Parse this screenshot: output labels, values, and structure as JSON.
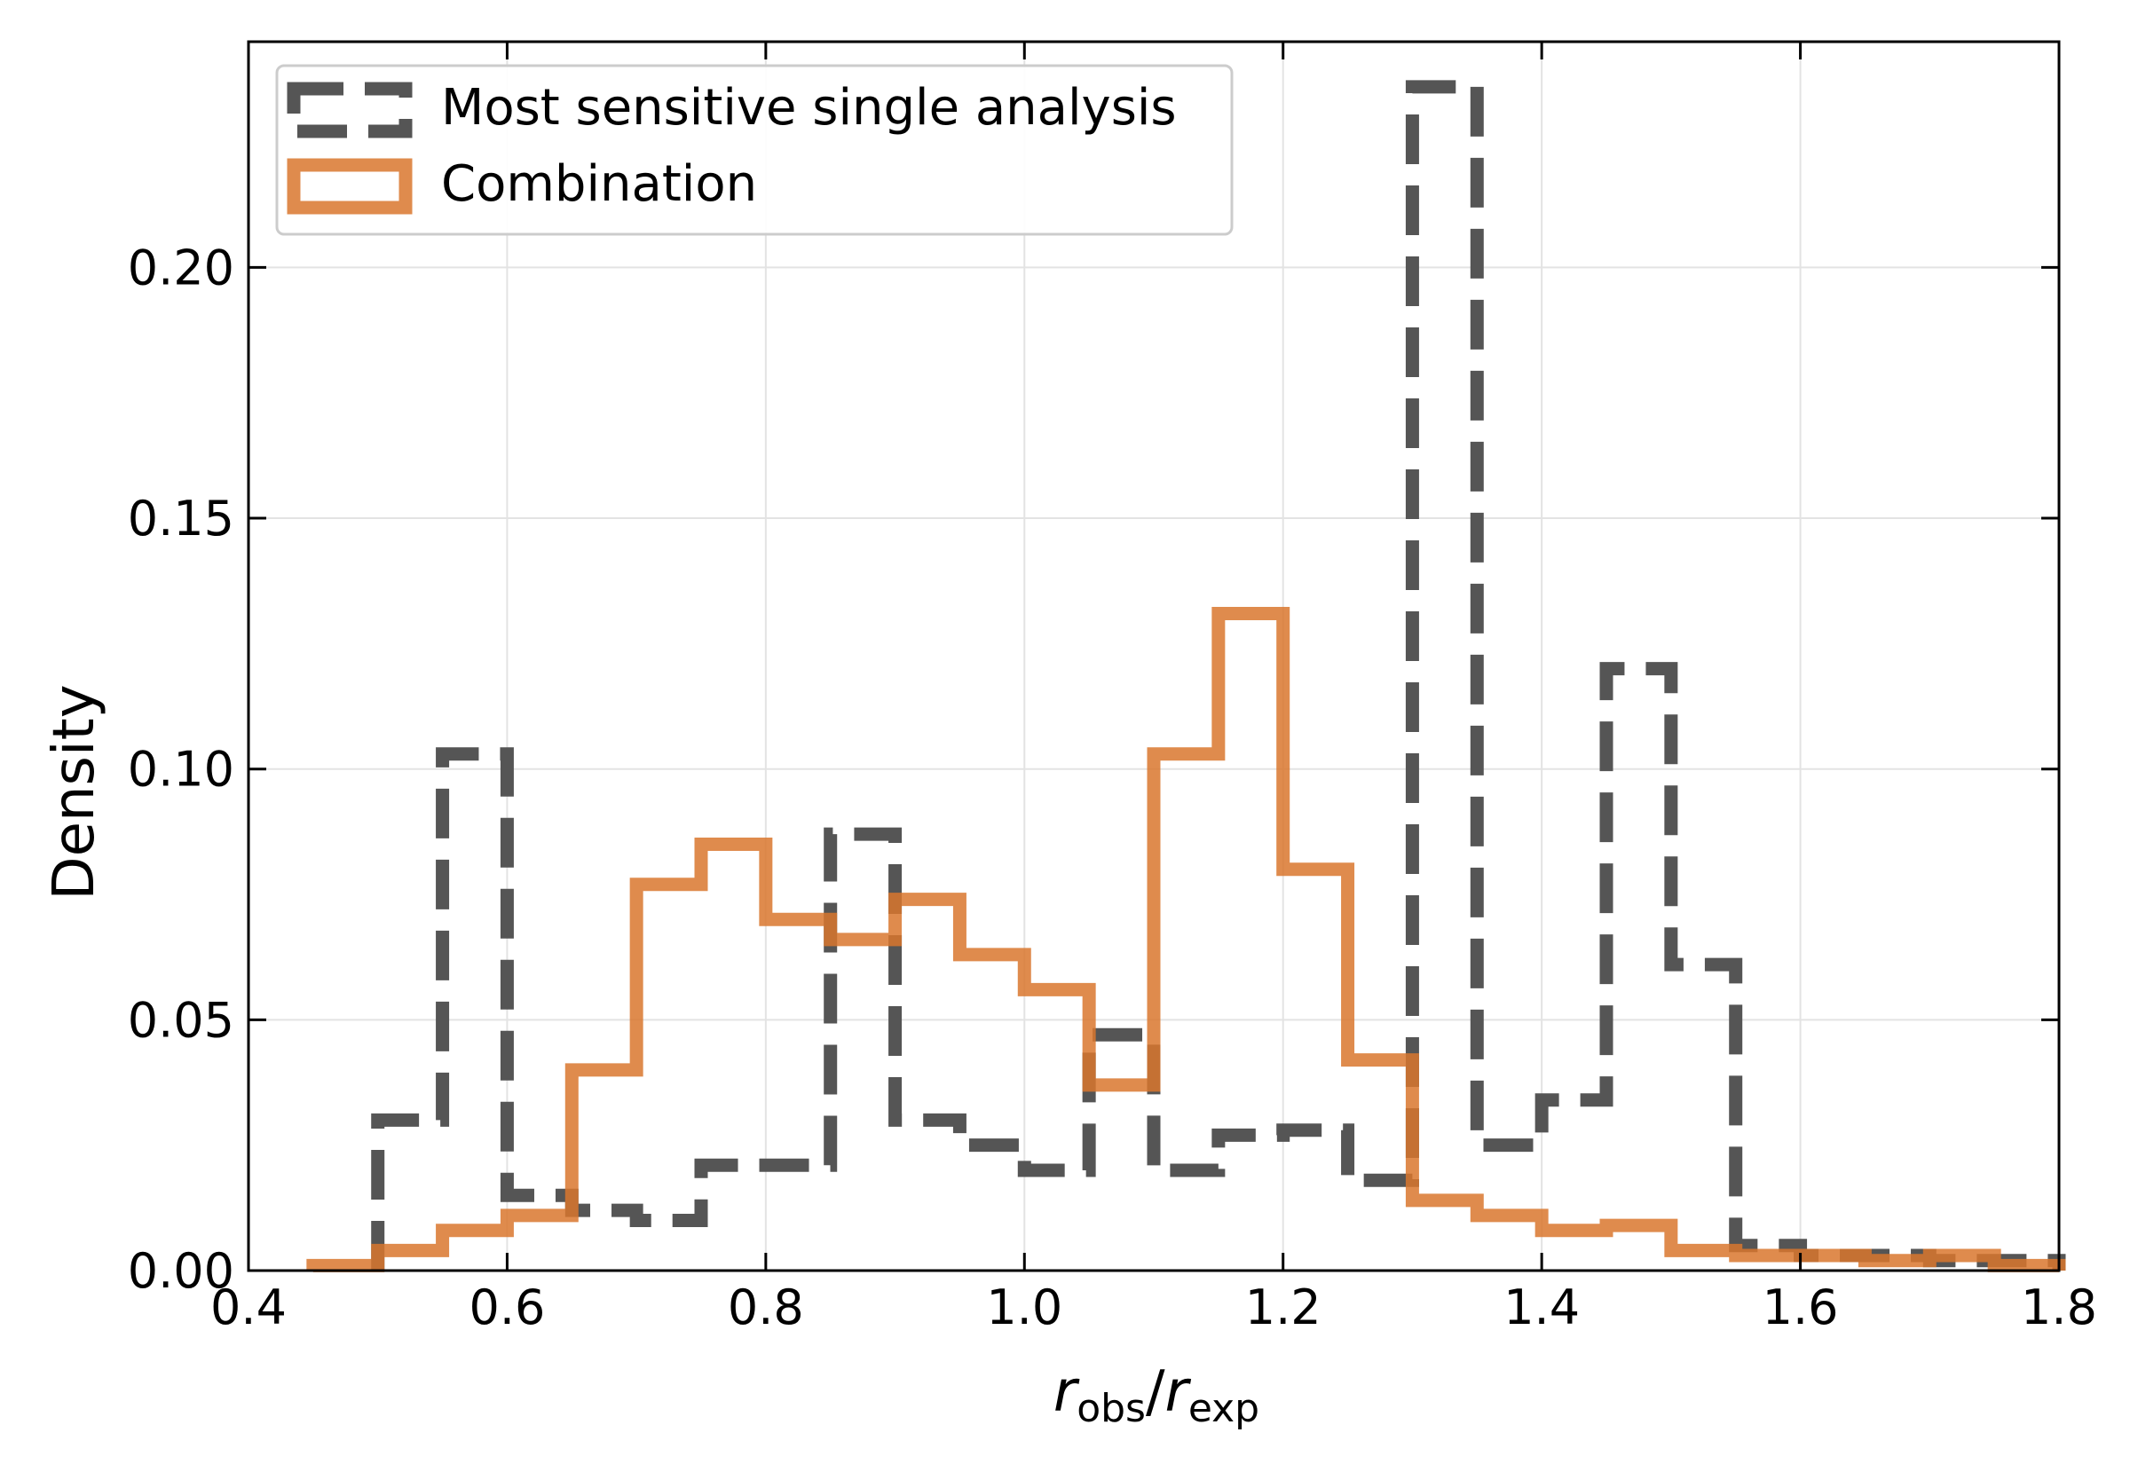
{
  "chart_data": {
    "type": "step-histogram",
    "title": "",
    "xlabel": "r_obs/r_exp",
    "xlabel_parts": {
      "main": "r",
      "sub1": "obs",
      "slash": "/",
      "main2": "r",
      "sub2": "exp"
    },
    "ylabel": "Density",
    "xlim": [
      0.4,
      1.8
    ],
    "ylim": [
      0.0,
      0.245
    ],
    "xticks": [
      0.4,
      0.6,
      0.8,
      1.0,
      1.2,
      1.4,
      1.6,
      1.8
    ],
    "xtick_labels": [
      "0.4",
      "0.6",
      "0.8",
      "1.0",
      "1.2",
      "1.4",
      "1.6",
      "1.8"
    ],
    "yticks": [
      0.0,
      0.05,
      0.1,
      0.15,
      0.2
    ],
    "ytick_labels": [
      "0.00",
      "0.05",
      "0.10",
      "0.15",
      "0.20"
    ],
    "grid": true,
    "legend_location": "upper-left",
    "series": [
      {
        "name": "Most sensitive single analysis",
        "style": "dashed",
        "color": "#555555",
        "bin_edges": [
          0.5,
          0.55,
          0.6,
          0.65,
          0.7,
          0.75,
          0.8,
          0.85,
          0.9,
          0.95,
          1.0,
          1.05,
          1.1,
          1.15,
          1.2,
          1.25,
          1.3,
          1.35,
          1.4,
          1.45,
          1.5,
          1.55,
          1.6,
          1.65,
          1.7,
          1.75,
          1.8
        ],
        "values": [
          0.03,
          0.103,
          0.015,
          0.012,
          0.01,
          0.021,
          0.021,
          0.087,
          0.03,
          0.025,
          0.02,
          0.047,
          0.02,
          0.027,
          0.028,
          0.018,
          0.236,
          0.025,
          0.034,
          0.12,
          0.061,
          0.005,
          0.003,
          0.003,
          0.002,
          0.002
        ]
      },
      {
        "name": "Combination",
        "style": "solid",
        "color": "#d9772e",
        "bin_edges": [
          0.45,
          0.5,
          0.55,
          0.6,
          0.65,
          0.7,
          0.75,
          0.8,
          0.85,
          0.9,
          0.95,
          1.0,
          1.05,
          1.1,
          1.15,
          1.2,
          1.25,
          1.3,
          1.35,
          1.4,
          1.45,
          1.5,
          1.55,
          1.6,
          1.65,
          1.7,
          1.75,
          1.8
        ],
        "values": [
          0.001,
          0.004,
          0.008,
          0.011,
          0.04,
          0.077,
          0.085,
          0.07,
          0.066,
          0.074,
          0.063,
          0.056,
          0.037,
          0.103,
          0.131,
          0.08,
          0.042,
          0.014,
          0.011,
          0.008,
          0.009,
          0.004,
          0.003,
          0.003,
          0.002,
          0.003,
          0.001
        ]
      }
    ]
  }
}
